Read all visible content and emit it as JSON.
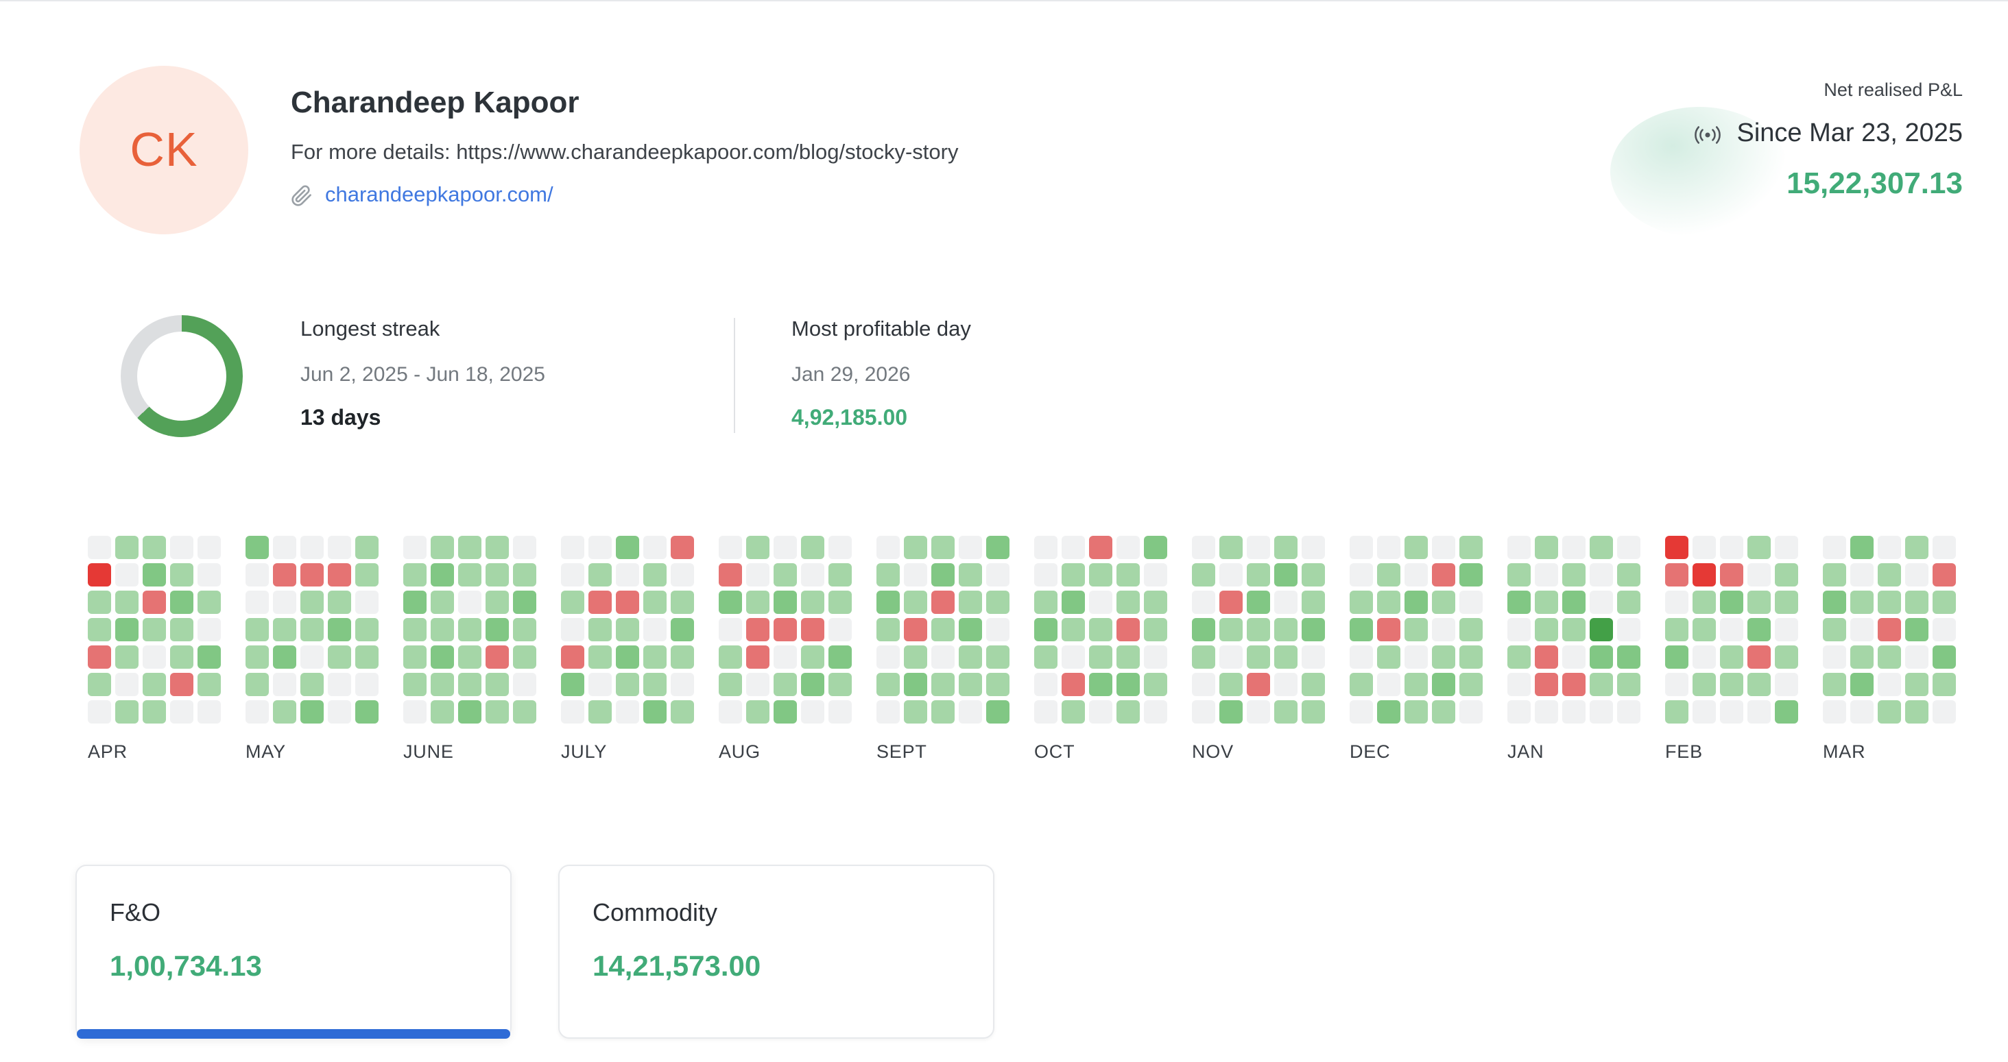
{
  "profile": {
    "initials": "CK",
    "name": "Charandeep Kapoor",
    "details": "For more details: https://www.charandeepkapoor.com/blog/stocky-story",
    "link": "charandeepkapoor.com/"
  },
  "pnl": {
    "label": "Net realised P&L",
    "since": "Since Mar 23, 2025",
    "value": "15,22,307.13"
  },
  "stats": {
    "streak": {
      "label": "Longest streak",
      "range": "Jun 2, 2025 - Jun 18, 2025",
      "value": "13 days",
      "donut_percent": 63
    },
    "profitable": {
      "label": "Most profitable day",
      "date": "Jan 29, 2026",
      "value": "4,92,185.00"
    }
  },
  "heatmap": {
    "legend": {
      ".": "#f0f1f2",
      "g": "#a5d6a7",
      "G": "#81c784",
      "D": "#43a047",
      "r": "#e57373",
      "R": "#e53935"
    },
    "months": [
      {
        "label": "APR",
        "cols": [
          ".Rggrg.",
          "g.gGg.g",
          "gGrg.gg",
          ".gGggr.",
          "..g.Gg."
        ]
      },
      {
        "label": "MAY",
        "cols": [
          "G..ggg.",
          ".r.gG.g",
          ".rgg.gG",
          ".rgGg..",
          "gg.gg.G"
        ]
      },
      {
        "label": "JUNE",
        "cols": [
          ".gGggg.",
          "gGggGgg",
          "gg.gggG",
          "gggGrgg",
          ".gGgg.g"
        ]
      },
      {
        "label": "JULY",
        "cols": [
          "..g.rG.",
          ".grgg.g",
          "G.rgGg.",
          ".gg.ggG",
          "r.gGg.g"
        ]
      },
      {
        "label": "AUG",
        "cols": [
          ".rG.gg.",
          "g.grr.g",
          ".gGr.gG",
          "g.grgG.",
          ".gg.Gg."
        ]
      },
      {
        "label": "SEPT",
        "cols": [
          ".gGg.g.",
          "g.grgGg",
          "gGrg.gg",
          ".ggGgg.",
          "G.g.ggG"
        ]
      },
      {
        "label": "OCT",
        "cols": [
          "..gGg..",
          ".gGg.rg",
          "rg.ggG.",
          ".ggrgGg",
          "G.gg.g."
        ]
      },
      {
        "label": "NOV",
        "cols": [
          ".g.Gg..",
          "g.rg.gG",
          ".gGggr.",
          "gG.gg.g",
          ".ggG.gg"
        ]
      },
      {
        "label": "DEC",
        "cols": [
          "..gG.g.",
          ".ggrg.G",
          "g.Gg.gg",
          ".rg.gGg",
          "gG.ggg."
        ]
      },
      {
        "label": "JAN",
        "cols": [
          ".gG.g..",
          "g.ggrr.",
          ".gGg.r.",
          "g..DGg.",
          ".gg.Gg."
        ]
      },
      {
        "label": "FEB",
        "cols": [
          "Rr.gG.g",
          ".Rgg.g.",
          ".rG.gg.",
          "g.gGrg.",
          ".gg.g.G"
        ]
      },
      {
        "label": "MAR",
        "cols": [
          ".gGg.g.",
          "G.g.gG.",
          ".ggrg.g",
          "g.gG.gg",
          ".rg.Gg."
        ]
      }
    ]
  },
  "segments": [
    {
      "label": "F&O",
      "value": "1,00,734.13",
      "active": true
    },
    {
      "label": "Commodity",
      "value": "14,21,573.00",
      "active": false
    }
  ],
  "colors": {
    "green_text": "#41ab78",
    "accent_blue": "#2e6bd6",
    "link_blue": "#4078e0",
    "avatar_bg": "#fde9e2",
    "avatar_text": "#e8613a",
    "donut_green": "#53a158",
    "donut_track": "#dcdee0"
  }
}
